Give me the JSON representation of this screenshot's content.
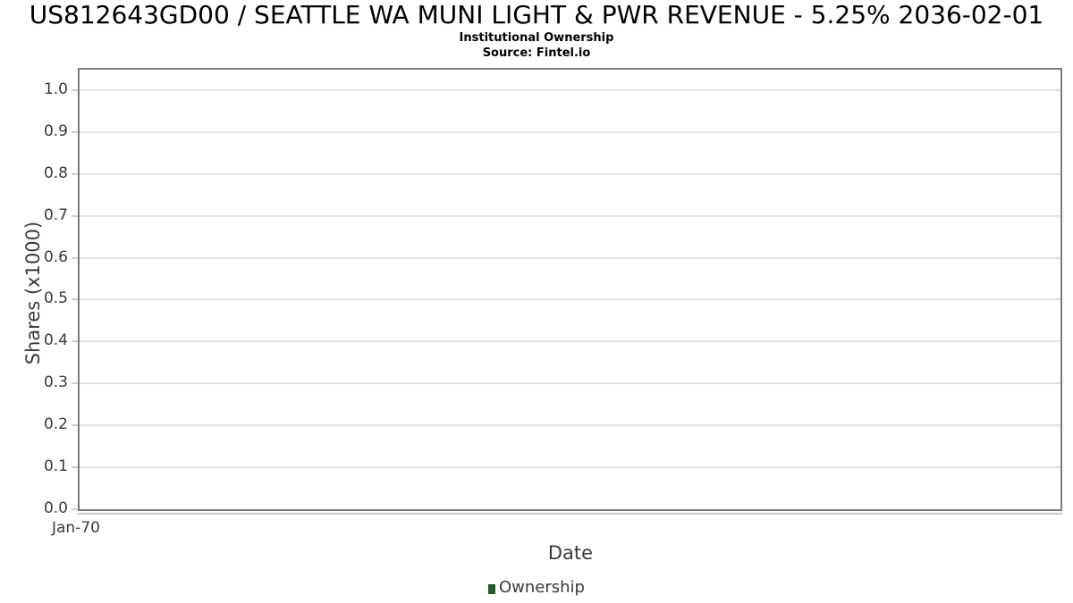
{
  "header": {
    "title": "US812643GD00 / SEATTLE WA MUNI LIGHT & PWR REVENUE - 5.25% 2036-02-01",
    "subtitle": "Institutional Ownership",
    "source": "Source: Fintel.io"
  },
  "chart_data": {
    "type": "line",
    "title": "US812643GD00 / SEATTLE WA MUNI LIGHT & PWR REVENUE - 5.25% 2036-02-01",
    "subtitle": "Institutional Ownership",
    "source": "Source: Fintel.io",
    "xlabel": "Date",
    "ylabel": "Shares (x1000)",
    "x_tick_labels": [
      "Jan-70"
    ],
    "y_tick_labels": [
      "0.0",
      "0.1",
      "0.2",
      "0.3",
      "0.4",
      "0.5",
      "0.6",
      "0.7",
      "0.8",
      "0.9",
      "1.0"
    ],
    "ylim": [
      0,
      1.049
    ],
    "grid": true,
    "legend_position": "bottom-center",
    "series": [
      {
        "name": "Ownership",
        "color": "#26582b",
        "x": [],
        "values": []
      }
    ],
    "note_empty": "No data points plotted; axes only"
  },
  "colors": {
    "background": "#ffffff",
    "spine": "#7c7c7c",
    "gridline": "#e2e2e2",
    "tick": "#d2d2d2",
    "tick_strip": "#c9c9c9",
    "text": "#3a3a3a",
    "title_text": "#000000",
    "legend_marker": "#26582b"
  }
}
